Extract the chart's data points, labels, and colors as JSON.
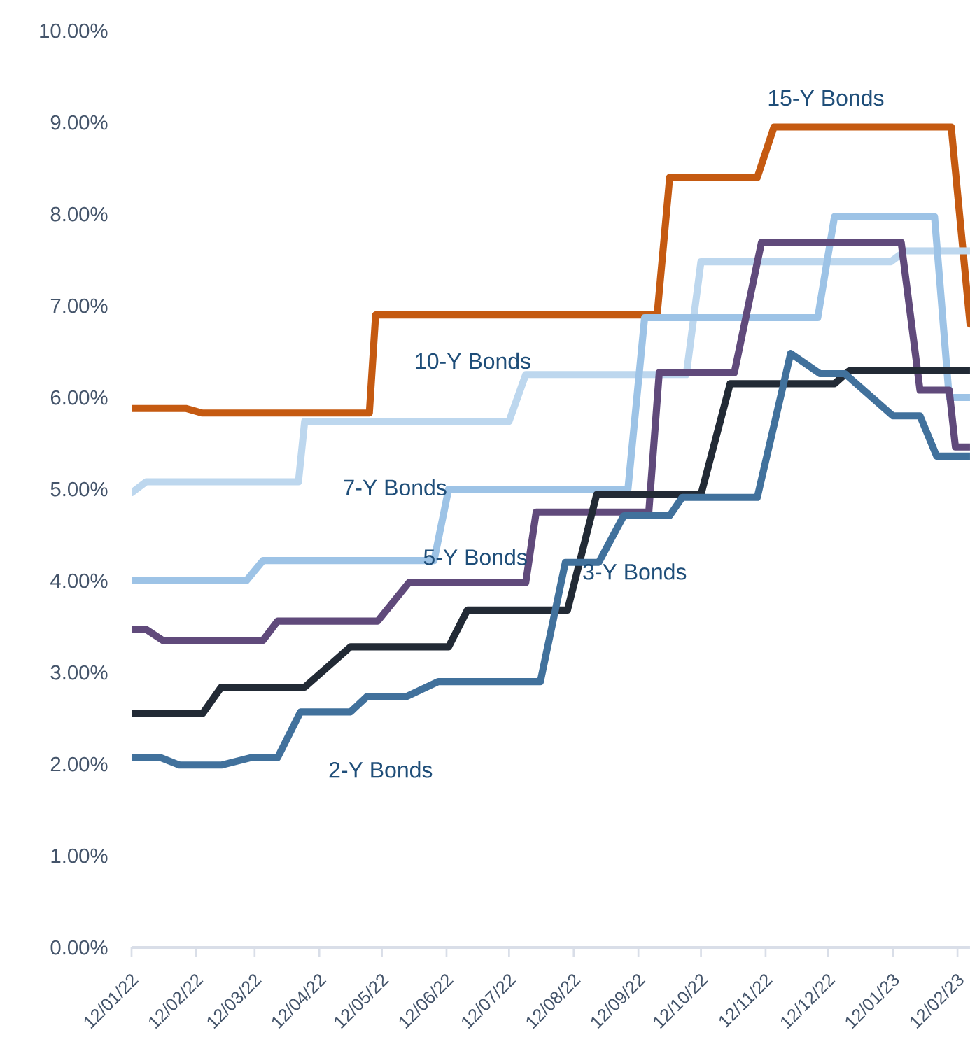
{
  "chart_data": {
    "type": "line",
    "marker": "none",
    "line_style": "solid",
    "xlim": [
      "2022-01-12",
      "2023-02-18"
    ],
    "xticks": [
      {
        "value": "2022-01-12",
        "label": "12/01/22"
      },
      {
        "value": "2022-02-12",
        "label": "12/02/22"
      },
      {
        "value": "2022-03-12",
        "label": "12/03/22"
      },
      {
        "value": "2022-04-12",
        "label": "12/04/22"
      },
      {
        "value": "2022-05-12",
        "label": "12/05/22"
      },
      {
        "value": "2022-06-12",
        "label": "12/06/22"
      },
      {
        "value": "2022-07-12",
        "label": "12/07/22"
      },
      {
        "value": "2022-08-12",
        "label": "12/08/22"
      },
      {
        "value": "2022-09-12",
        "label": "12/09/22"
      },
      {
        "value": "2022-10-12",
        "label": "12/10/22"
      },
      {
        "value": "2022-11-12",
        "label": "12/11/22"
      },
      {
        "value": "2022-12-12",
        "label": "12/12/22"
      },
      {
        "value": "2023-01-12",
        "label": "12/01/23"
      },
      {
        "value": "2023-02-12",
        "label": "12/02/23"
      }
    ],
    "ylim": [
      0,
      10
    ],
    "yticks": [
      {
        "value": 0,
        "label": "0.00%"
      },
      {
        "value": 1,
        "label": "1.00%"
      },
      {
        "value": 2,
        "label": "2.00%"
      },
      {
        "value": 3,
        "label": "3.00%"
      },
      {
        "value": 4,
        "label": "4.00%"
      },
      {
        "value": 5,
        "label": "5.00%"
      },
      {
        "value": 6,
        "label": "6.00%"
      },
      {
        "value": 7,
        "label": "7.00%"
      },
      {
        "value": 8,
        "label": "8.00%"
      },
      {
        "value": 9,
        "label": "9.00%"
      },
      {
        "value": 10,
        "label": "10.00%"
      }
    ],
    "series": [
      {
        "name": "15-Y Bonds",
        "color": "#c55a11",
        "x": [
          "2022-01-12",
          "2022-02-07",
          "2022-02-15",
          "2022-05-06",
          "2022-05-09",
          "2022-09-21",
          "2022-09-27",
          "2022-11-08",
          "2022-11-16",
          "2023-02-09",
          "2023-02-18"
        ],
        "values": [
          5.88,
          5.88,
          5.83,
          5.83,
          6.9,
          6.9,
          8.4,
          8.4,
          8.95,
          8.95,
          6.8
        ]
      },
      {
        "name": "10-Y Bonds",
        "color": "#bdd7ee",
        "x": [
          "2022-01-12",
          "2022-01-19",
          "2022-04-02",
          "2022-04-05",
          "2022-07-12",
          "2022-07-20",
          "2022-10-05",
          "2022-10-12",
          "2023-01-11",
          "2023-01-18",
          "2023-02-18"
        ],
        "values": [
          4.96,
          5.08,
          5.08,
          5.74,
          5.74,
          6.25,
          6.25,
          7.48,
          7.48,
          7.6,
          7.6
        ]
      },
      {
        "name": "7-Y Bonds",
        "color": "#9dc3e6",
        "x": [
          "2022-01-12",
          "2022-03-08",
          "2022-03-16",
          "2022-06-06",
          "2022-06-13",
          "2022-09-07",
          "2022-09-15",
          "2022-12-07",
          "2022-12-15",
          "2023-02-01",
          "2023-02-08",
          "2023-02-18"
        ],
        "values": [
          4.0,
          4.0,
          4.22,
          4.22,
          5.0,
          5.0,
          6.87,
          6.87,
          7.97,
          7.97,
          6.0,
          6.0
        ]
      },
      {
        "name": "5-Y Bonds",
        "color": "#604a7b",
        "x": [
          "2022-01-12",
          "2022-01-19",
          "2022-01-27",
          "2022-03-16",
          "2022-03-23",
          "2022-05-10",
          "2022-05-25",
          "2022-07-20",
          "2022-07-25",
          "2022-09-17",
          "2022-09-22",
          "2022-10-28",
          "2022-11-10",
          "2023-01-16",
          "2023-01-25",
          "2023-02-08",
          "2023-02-11",
          "2023-02-18"
        ],
        "values": [
          3.47,
          3.47,
          3.35,
          3.35,
          3.56,
          3.56,
          3.98,
          3.98,
          4.75,
          4.75,
          6.27,
          6.27,
          7.69,
          7.69,
          6.08,
          6.08,
          5.46,
          5.46
        ]
      },
      {
        "name": "3-Y Bonds",
        "color": "#222a35",
        "x": [
          "2022-01-12",
          "2022-02-15",
          "2022-02-24",
          "2022-04-05",
          "2022-04-27",
          "2022-06-13",
          "2022-06-22",
          "2022-08-09",
          "2022-08-23",
          "2022-10-12",
          "2022-10-26",
          "2022-12-15",
          "2022-12-22",
          "2023-02-18"
        ],
        "values": [
          2.55,
          2.55,
          2.84,
          2.84,
          3.28,
          3.28,
          3.68,
          3.68,
          4.94,
          4.94,
          6.15,
          6.15,
          6.29,
          6.29
        ]
      },
      {
        "name": "2-Y Bonds",
        "color": "#41719c",
        "x": [
          "2022-01-12",
          "2022-01-26",
          "2022-02-04",
          "2022-02-24",
          "2022-03-10",
          "2022-03-23",
          "2022-04-03",
          "2022-04-27",
          "2022-05-05",
          "2022-05-24",
          "2022-06-08",
          "2022-07-27",
          "2022-08-08",
          "2022-08-24",
          "2022-09-05",
          "2022-09-27",
          "2022-10-03",
          "2022-11-08",
          "2022-11-24",
          "2022-12-08",
          "2022-12-20",
          "2023-01-12",
          "2023-01-25",
          "2023-02-02",
          "2023-02-18"
        ],
        "values": [
          2.07,
          2.07,
          1.99,
          1.99,
          2.07,
          2.07,
          2.57,
          2.57,
          2.74,
          2.74,
          2.9,
          2.9,
          4.2,
          4.2,
          4.71,
          4.71,
          4.91,
          4.91,
          6.48,
          6.26,
          6.26,
          5.8,
          5.8,
          5.36,
          5.36
        ]
      }
    ]
  }
}
